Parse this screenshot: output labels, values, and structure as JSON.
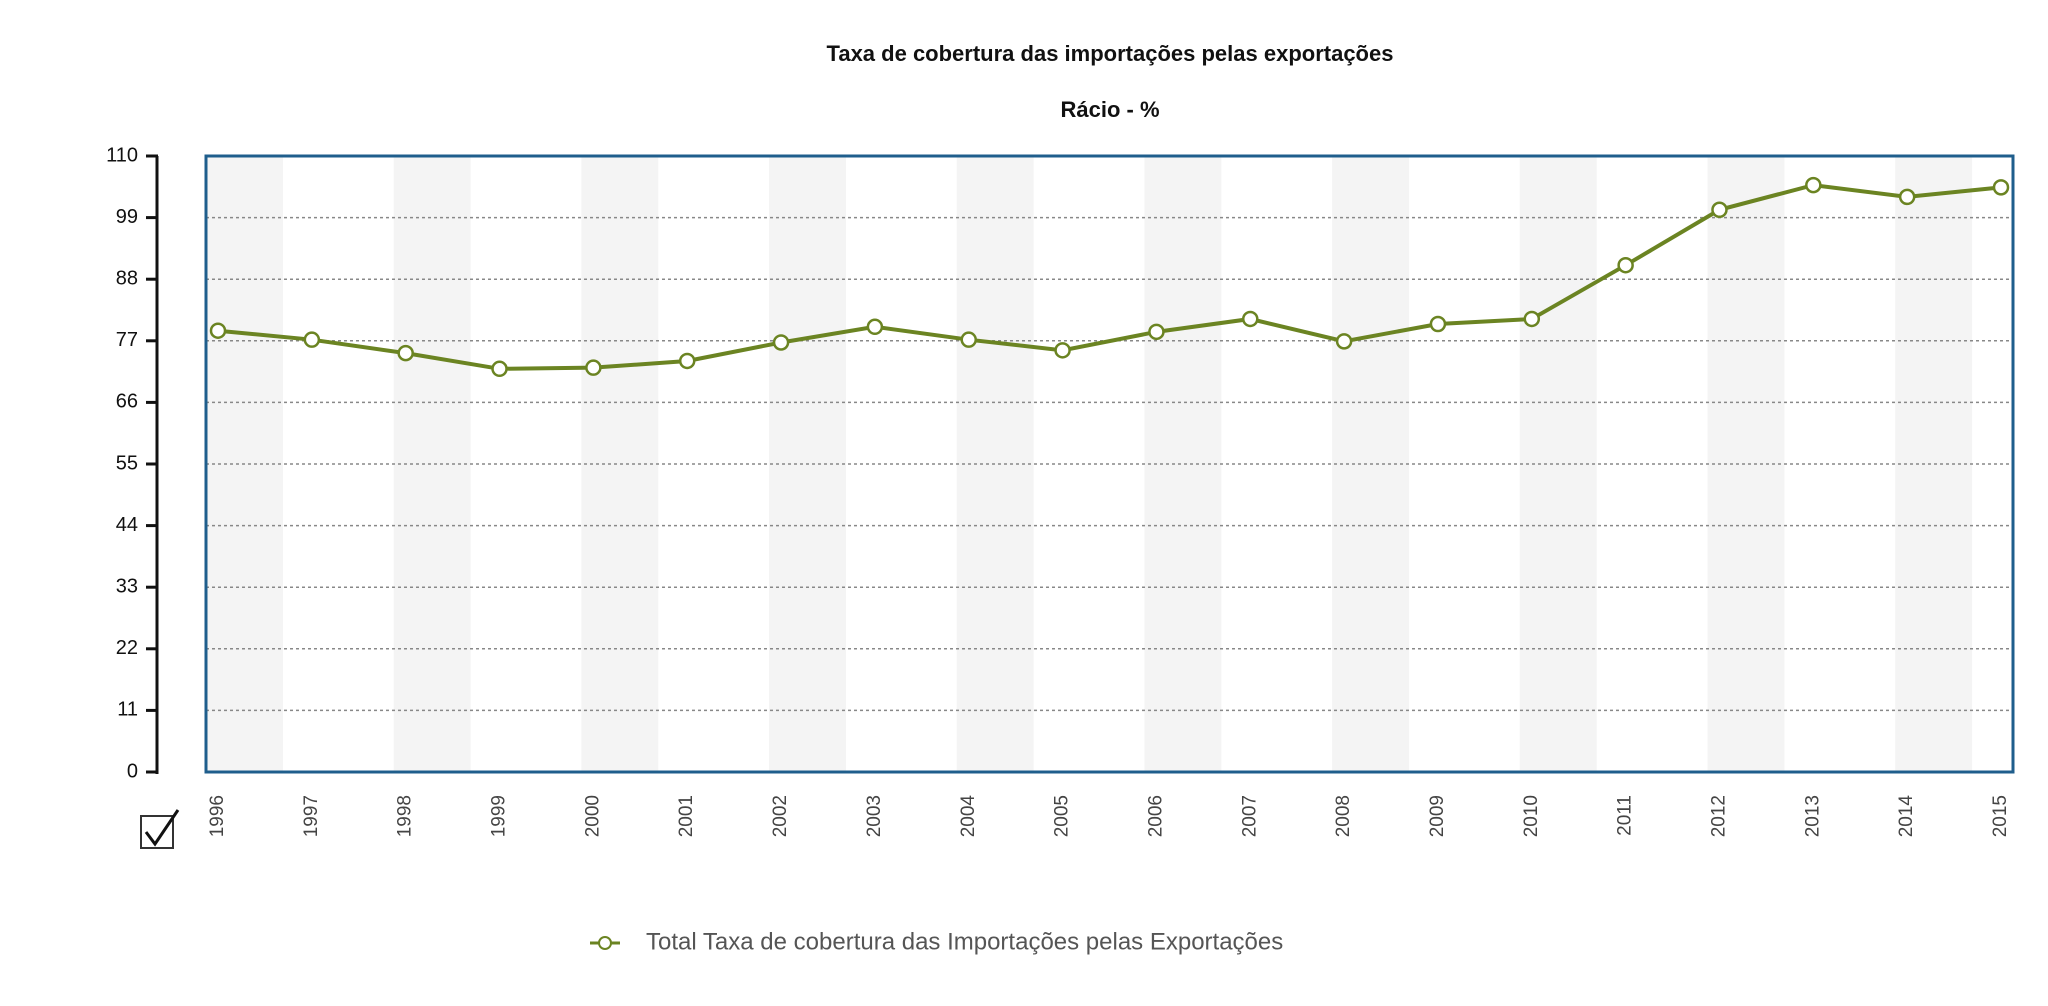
{
  "chart_data": {
    "type": "line",
    "title": "Taxa de cobertura das importações pelas exportações",
    "subtitle": "Rácio - %",
    "categories": [
      "1996",
      "1997",
      "1998",
      "1999",
      "2000",
      "2001",
      "2002",
      "2003",
      "2004",
      "2005",
      "2006",
      "2007",
      "2008",
      "2009",
      "2010",
      "2011",
      "2012",
      "2013",
      "2014",
      "2015"
    ],
    "series": [
      {
        "name": "Total Taxa de cobertura das Importações pelas Exportações",
        "color": "#6b8422",
        "values": [
          78.8,
          77.2,
          74.8,
          72.0,
          72.2,
          73.4,
          76.7,
          79.5,
          77.2,
          75.3,
          78.6,
          80.9,
          76.9,
          80.0,
          80.9,
          90.5,
          100.4,
          104.8,
          102.7,
          104.4
        ]
      }
    ],
    "ylim": [
      0,
      110
    ],
    "yticks": [
      0,
      11,
      22,
      33,
      44,
      55,
      66,
      77,
      88,
      99,
      110
    ],
    "grid": true
  }
}
